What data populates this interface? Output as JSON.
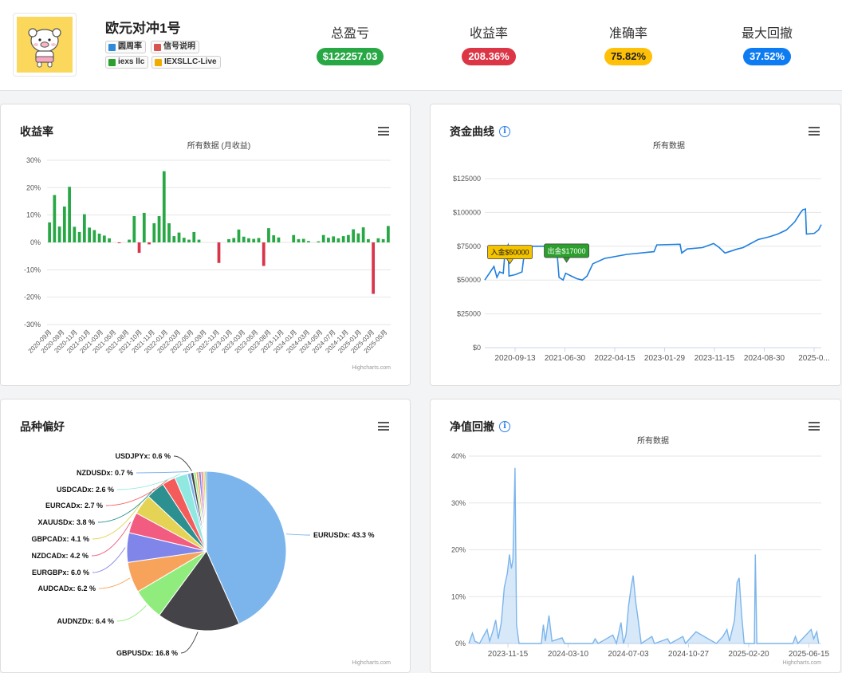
{
  "account": {
    "name": "欧元对冲1号",
    "tags": [
      {
        "label": "圆周率",
        "icon": "user-card-icon",
        "color": "#2e8bd8"
      },
      {
        "label": "信号说明",
        "icon": "document-icon",
        "color": "#d9534f"
      },
      {
        "label": "iexs llc",
        "icon": "broker-icon",
        "color": "#2ca02c"
      },
      {
        "label": "IEXSLLC-Live",
        "icon": "server-icon",
        "color": "#f0ad00"
      }
    ]
  },
  "stats": [
    {
      "label": "总盈亏",
      "value": "$122257.03",
      "color": "#28a745"
    },
    {
      "label": "收益率",
      "value": "208.36%",
      "color": "#dc3545"
    },
    {
      "label": "准确率",
      "value": "75.82%",
      "color": "#ffc107"
    },
    {
      "label": "最大回撤",
      "value": "37.52%",
      "color": "#0d7cf2"
    }
  ],
  "panels": {
    "returns": {
      "title": "收益率",
      "subtitle": "所有数据 (月收益)",
      "credit": "Highcharts.com"
    },
    "equity": {
      "title": "资金曲线",
      "subtitle": "所有数据",
      "credit": ""
    },
    "symbols": {
      "title": "品种偏好",
      "credit": "Highcharts.com"
    },
    "drawdown": {
      "title": "净值回撤",
      "subtitle": "所有数据",
      "credit": "Highcharts.com"
    }
  },
  "chart_data": [
    {
      "type": "bar",
      "title": "",
      "subtitle": "所有数据 (月收益)",
      "ylim": [
        -30,
        30
      ],
      "yticks": [
        "30%",
        "20%",
        "10%",
        "0%",
        "-10%",
        "-20%",
        "-30%"
      ],
      "xtick_labels": [
        "2020-09月",
        "2020-09月",
        "2020-11月",
        "2021-01月",
        "2021-03月",
        "2021-05月",
        "2021-08月",
        "2021-10月",
        "2021-11月",
        "2022-01月",
        "2022-03月",
        "2022-05月",
        "2022-09月",
        "2022-11月",
        "2023-01月",
        "2023-03月",
        "2023-05月",
        "2023-08月",
        "2023-11月",
        "2024-01月",
        "2024-03月",
        "2024-05月",
        "2024-07月",
        "2024-11月",
        "2025-01月",
        "2025-03月",
        "2025-05月"
      ],
      "values": [
        7.3,
        17.3,
        5.8,
        13.1,
        20.3,
        5.7,
        3.8,
        10.3,
        5.4,
        4.5,
        3.2,
        2.5,
        1.5,
        0,
        -0.3,
        0,
        1,
        9.6,
        -3.8,
        10.8,
        -0.7,
        7,
        9.6,
        26,
        7,
        2.3,
        3.6,
        1.7,
        1,
        3.8,
        1,
        0,
        0,
        0,
        -7.5,
        0,
        1.2,
        1.6,
        4.7,
        2.1,
        1.5,
        1.3,
        1.6,
        -8.6,
        5.2,
        2.6,
        1.8,
        0,
        0,
        2.7,
        1.2,
        1.3,
        0.5,
        0,
        0.4,
        2.7,
        1.7,
        2.2,
        1.5,
        2.3,
        2.7,
        4.8,
        3.3,
        5.5,
        1.2,
        -18.8,
        1.5,
        1.2,
        6
      ]
    },
    {
      "type": "line",
      "title": "",
      "subtitle": "所有数据",
      "yticks": [
        "$125000",
        "$100000",
        "$75000",
        "$50000",
        "$25000",
        "$0"
      ],
      "ylim": [
        0,
        125000
      ],
      "xtick_labels": [
        "2020-09-13",
        "2021-06-30",
        "2022-04-15",
        "2023-01-29",
        "2023-11-15",
        "2024-08-30",
        "2025-0..."
      ],
      "x_range": [
        "2020-07-01",
        "2025-07-10"
      ],
      "series": [
        {
          "name": "",
          "points": [
            [
              "2020-07-01",
              50000
            ],
            [
              "2020-08-20",
              60000
            ],
            [
              "2020-09-05",
              52000
            ],
            [
              "2020-09-20",
              56000
            ],
            [
              "2020-10-10",
              55000
            ],
            [
              "2020-10-20",
              72000
            ],
            [
              "2020-11-05",
              76000
            ],
            [
              "2020-11-10",
              53000
            ],
            [
              "2020-12-15",
              54000
            ],
            [
              "2021-01-20",
              56000
            ],
            [
              "2021-02-05",
              74000
            ],
            [
              "2021-03-20",
              75000
            ],
            [
              "2021-06-20",
              75000
            ],
            [
              "2021-06-25",
              70000
            ],
            [
              "2021-08-01",
              67000
            ],
            [
              "2021-08-10",
              52000
            ],
            [
              "2021-09-01",
              50000
            ],
            [
              "2021-09-15",
              55000
            ],
            [
              "2021-10-15",
              53000
            ],
            [
              "2021-11-15",
              51000
            ],
            [
              "2021-12-15",
              50000
            ],
            [
              "2022-01-10",
              53000
            ],
            [
              "2022-02-10",
              62000
            ],
            [
              "2022-04-15",
              66000
            ],
            [
              "2022-08-15",
              69000
            ],
            [
              "2023-01-10",
              71000
            ],
            [
              "2023-01-25",
              76000
            ],
            [
              "2023-06-01",
              76500
            ],
            [
              "2023-06-10",
              70000
            ],
            [
              "2023-07-10",
              73000
            ],
            [
              "2023-10-01",
              74000
            ],
            [
              "2023-12-01",
              77000
            ],
            [
              "2024-01-01",
              74000
            ],
            [
              "2024-02-01",
              70000
            ],
            [
              "2024-04-10",
              73000
            ],
            [
              "2024-05-10",
              74000
            ],
            [
              "2024-08-01",
              80000
            ],
            [
              "2024-09-01",
              81000
            ],
            [
              "2024-10-01",
              82000
            ],
            [
              "2024-11-15",
              84000
            ],
            [
              "2025-01-01",
              87000
            ],
            [
              "2025-02-15",
              93000
            ],
            [
              "2025-03-20",
              100000
            ],
            [
              "2025-04-01",
              102000
            ],
            [
              "2025-04-15",
              102500
            ],
            [
              "2025-04-20",
              84000
            ],
            [
              "2025-06-01",
              84500
            ],
            [
              "2025-06-25",
              87000
            ],
            [
              "2025-07-10",
              91000
            ]
          ]
        }
      ],
      "annotations": [
        {
          "label": "入金$50000",
          "color": "#f5c400",
          "date": "2020-11-15",
          "value": 58000
        },
        {
          "label": "出金$17000",
          "color": "#2ca02c",
          "date": "2021-09-20",
          "value": 59000
        }
      ]
    },
    {
      "type": "pie",
      "title": "",
      "slices": [
        {
          "name": "EURUSDx: 43.3 %",
          "value": 43.3,
          "color": "#7cb5ec"
        },
        {
          "name": "GBPUSDx: 16.8 %",
          "value": 16.8,
          "color": "#434348"
        },
        {
          "name": "AUDNZDx: 6.4 %",
          "value": 6.4,
          "color": "#90ed7d"
        },
        {
          "name": "AUDCADx: 6.2 %",
          "value": 6.2,
          "color": "#f7a35c"
        },
        {
          "name": "EURGBPx: 6.0 %",
          "value": 6.0,
          "color": "#8085e9"
        },
        {
          "name": "NZDCADx: 4.2 %",
          "value": 4.2,
          "color": "#f15c80"
        },
        {
          "name": "GBPCADx: 4.1 %",
          "value": 4.1,
          "color": "#e4d354"
        },
        {
          "name": "XAUUSDx: 3.8 %",
          "value": 3.8,
          "color": "#2b908f"
        },
        {
          "name": "EURCADx: 2.7 %",
          "value": 2.7,
          "color": "#f45b5b"
        },
        {
          "name": "USDCADx: 2.6 %",
          "value": 2.6,
          "color": "#91e8e1"
        },
        {
          "name": "NZDUSDx: 0.7 %",
          "value": 0.7,
          "color": "#7cb5ec"
        },
        {
          "name": "USDJPYx: 0.6 %",
          "value": 0.6,
          "color": "#434348"
        },
        {
          "name": "",
          "value": 0.5,
          "color": "#90ed7d"
        },
        {
          "name": "",
          "value": 0.5,
          "color": "#f7a35c"
        },
        {
          "name": "",
          "value": 0.5,
          "color": "#8085e9"
        },
        {
          "name": "",
          "value": 0.4,
          "color": "#f15c80"
        },
        {
          "name": "",
          "value": 0.4,
          "color": "#e4d354"
        },
        {
          "name": "",
          "value": 0.3,
          "color": "#2b908f"
        }
      ]
    },
    {
      "type": "area",
      "title": "",
      "subtitle": "所有数据",
      "ylim": [
        0,
        40
      ],
      "yticks": [
        "40%",
        "30%",
        "20%",
        "10%",
        "0%"
      ],
      "xtick_labels": [
        "2023-11-15",
        "2024-03-10",
        "2024-07-03",
        "2024-10-27",
        "2025-02-20",
        "2025-06-15"
      ],
      "x_range": [
        "2023-08-15",
        "2025-07-10"
      ],
      "points": [
        [
          "2023-08-15",
          0
        ],
        [
          "2023-08-22",
          2.2
        ],
        [
          "2023-08-27",
          0.5
        ],
        [
          "2023-09-05",
          0
        ],
        [
          "2023-09-20",
          3
        ],
        [
          "2023-09-25",
          0.5
        ],
        [
          "2023-10-01",
          2.5
        ],
        [
          "2023-10-07",
          5
        ],
        [
          "2023-10-12",
          1
        ],
        [
          "2023-10-18",
          4.5
        ],
        [
          "2023-10-24",
          12
        ],
        [
          "2023-10-30",
          15
        ],
        [
          "2023-11-03",
          19
        ],
        [
          "2023-11-07",
          16
        ],
        [
          "2023-11-10",
          18
        ],
        [
          "2023-11-14",
          37.5
        ],
        [
          "2023-11-17",
          4
        ],
        [
          "2023-11-22",
          0
        ],
        [
          "2024-01-05",
          0
        ],
        [
          "2024-01-09",
          4
        ],
        [
          "2024-01-13",
          0.5
        ],
        [
          "2024-01-20",
          6
        ],
        [
          "2024-01-26",
          0.5
        ],
        [
          "2024-02-15",
          1.2
        ],
        [
          "2024-02-20",
          0
        ],
        [
          "2024-04-15",
          0
        ],
        [
          "2024-04-20",
          1
        ],
        [
          "2024-04-26",
          0
        ],
        [
          "2024-05-25",
          1.8
        ],
        [
          "2024-06-01",
          0
        ],
        [
          "2024-06-10",
          4.5
        ],
        [
          "2024-06-15",
          0
        ],
        [
          "2024-06-20",
          2
        ],
        [
          "2024-06-25",
          8
        ],
        [
          "2024-06-30",
          12
        ],
        [
          "2024-07-04",
          14.5
        ],
        [
          "2024-07-09",
          9
        ],
        [
          "2024-07-14",
          5
        ],
        [
          "2024-07-20",
          0
        ],
        [
          "2024-08-10",
          1.5
        ],
        [
          "2024-08-15",
          0
        ],
        [
          "2024-09-10",
          1
        ],
        [
          "2024-09-15",
          0
        ],
        [
          "2024-10-10",
          1.5
        ],
        [
          "2024-10-15",
          0
        ],
        [
          "2024-11-05",
          2.5
        ],
        [
          "2024-12-15",
          0
        ],
        [
          "2024-12-28",
          1.5
        ],
        [
          "2025-01-05",
          3
        ],
        [
          "2025-01-10",
          0.5
        ],
        [
          "2025-01-20",
          5
        ],
        [
          "2025-01-25",
          13
        ],
        [
          "2025-01-29",
          14
        ],
        [
          "2025-02-03",
          6
        ],
        [
          "2025-02-08",
          0
        ],
        [
          "2025-02-28",
          0
        ],
        [
          "2025-03-02",
          19
        ],
        [
          "2025-03-05",
          0
        ],
        [
          "2025-05-15",
          0
        ],
        [
          "2025-05-20",
          1.5
        ],
        [
          "2025-05-25",
          0
        ],
        [
          "2025-06-20",
          3
        ],
        [
          "2025-06-25",
          1
        ],
        [
          "2025-07-01",
          2.5
        ],
        [
          "2025-07-05",
          0
        ]
      ]
    }
  ]
}
